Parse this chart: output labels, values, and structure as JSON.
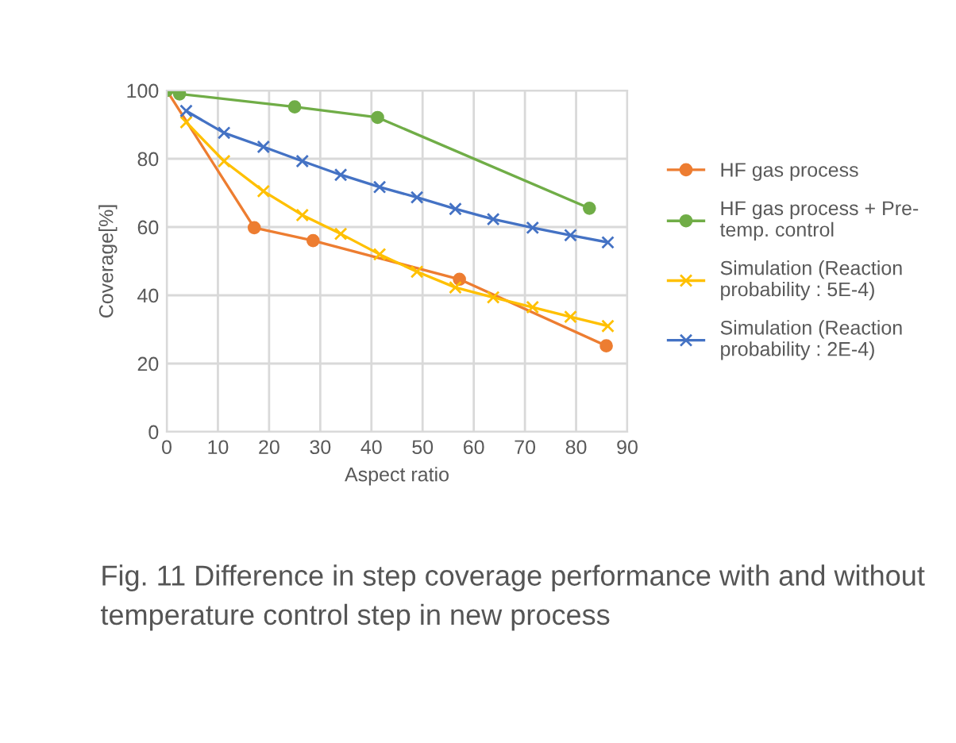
{
  "chart_data": {
    "type": "line",
    "xlabel": "Aspect ratio",
    "ylabel": "Coverage[%]",
    "xlim": [
      0,
      90
    ],
    "xticks": [
      0,
      10,
      20,
      30,
      40,
      50,
      60,
      70,
      80,
      90
    ],
    "ylim": [
      0,
      100
    ],
    "yticks": [
      0,
      20,
      40,
      60,
      80,
      100
    ],
    "grid": true,
    "legend": "right",
    "line_style": "solid",
    "annotations": [
      "Fig. 11 Difference in step coverage performance with and without temperature control step in new process"
    ],
    "series": [
      {
        "name": "HF gas process",
        "color": "#ed7d31",
        "marker": "circle",
        "x": [
          0,
          17.1,
          28.6,
          57.2,
          85.9
        ],
        "values": [
          100,
          59.8,
          56,
          44.7,
          25.2
        ]
      },
      {
        "name": "HF gas process + Pre-temp. control",
        "color": "#70ad47",
        "marker": "circle",
        "x": [
          0,
          2.5,
          25,
          41.2,
          82.6
        ],
        "values": [
          100,
          99,
          95.2,
          92.1,
          65.5
        ]
      },
      {
        "name": "Simulation (Reaction probability : 5E-4)",
        "color": "#ffc000",
        "marker": "cross",
        "x": [
          3.8,
          11.2,
          18.9,
          26.5,
          34,
          41.6,
          48.9,
          56.4,
          63.8,
          71.5,
          78.9,
          86.2
        ],
        "values": [
          90.7,
          79.3,
          70.5,
          63.5,
          58,
          52,
          46.9,
          42.3,
          39.4,
          36.5,
          33.7,
          31
        ]
      },
      {
        "name": "Simulation (Reaction probability : 2E-4)",
        "color": "#4472c4",
        "marker": "cross",
        "x": [
          3.8,
          11.2,
          18.9,
          26.5,
          34,
          41.6,
          48.9,
          56.4,
          63.8,
          71.5,
          78.9,
          86.2
        ],
        "values": [
          94,
          87.6,
          83.5,
          79.3,
          75.3,
          71.7,
          68.7,
          65.3,
          62.3,
          59.8,
          57.6,
          55.5
        ]
      }
    ]
  }
}
